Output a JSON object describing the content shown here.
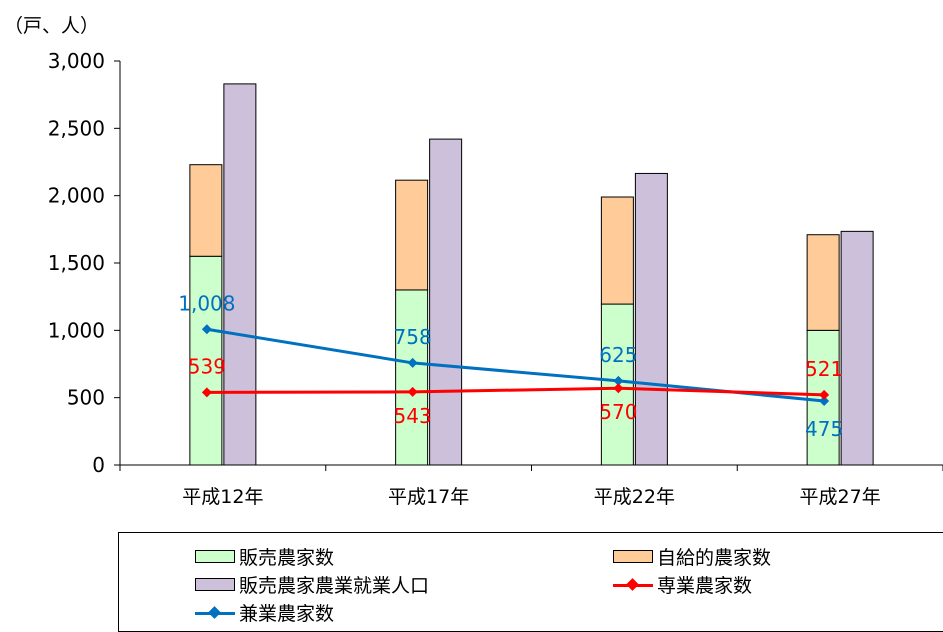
{
  "unit_label": "（戸、人）",
  "colors": {
    "hanbai": "#ccffcc",
    "jikyu": "#ffcc99",
    "shugyo_jinko": "#ccc0da",
    "sengyo": "#ff0000",
    "kengyo": "#0070c0"
  },
  "chart_data": {
    "type": "bar",
    "categories": [
      "平成12年",
      "平成17年",
      "平成22年",
      "平成27年"
    ],
    "ylim": [
      0,
      3000
    ],
    "yticks": [
      "0",
      "500",
      "1,000",
      "1,500",
      "2,000",
      "2,500",
      "3,000"
    ],
    "ytick_values": [
      0,
      500,
      1000,
      1500,
      2000,
      2500,
      3000
    ],
    "grid": false,
    "legend_position": "bottom",
    "series": [
      {
        "name": "販売農家数",
        "kind": "stacked-bar",
        "values": [
          1550,
          1300,
          1195,
          1000
        ]
      },
      {
        "name": "自給的農家数",
        "kind": "stacked-bar",
        "values": [
          680,
          815,
          795,
          710
        ]
      },
      {
        "name": "販売農家農業就業人口",
        "kind": "bar",
        "values": [
          2830,
          2420,
          2165,
          1735
        ]
      },
      {
        "name": "専業農家数",
        "kind": "line",
        "values": [
          539,
          543,
          570,
          521
        ],
        "labels": [
          "539",
          "543",
          "570",
          "521"
        ]
      },
      {
        "name": "兼業農家数",
        "kind": "line",
        "values": [
          1008,
          758,
          625,
          475
        ],
        "labels": [
          "1,008",
          "758",
          "625",
          "475"
        ]
      }
    ]
  },
  "legend": [
    {
      "label": "販売農家数"
    },
    {
      "label": "自給的農家数"
    },
    {
      "label": "販売農家農業就業人口"
    },
    {
      "label": "専業農家数"
    },
    {
      "label": "兼業農家数"
    }
  ]
}
